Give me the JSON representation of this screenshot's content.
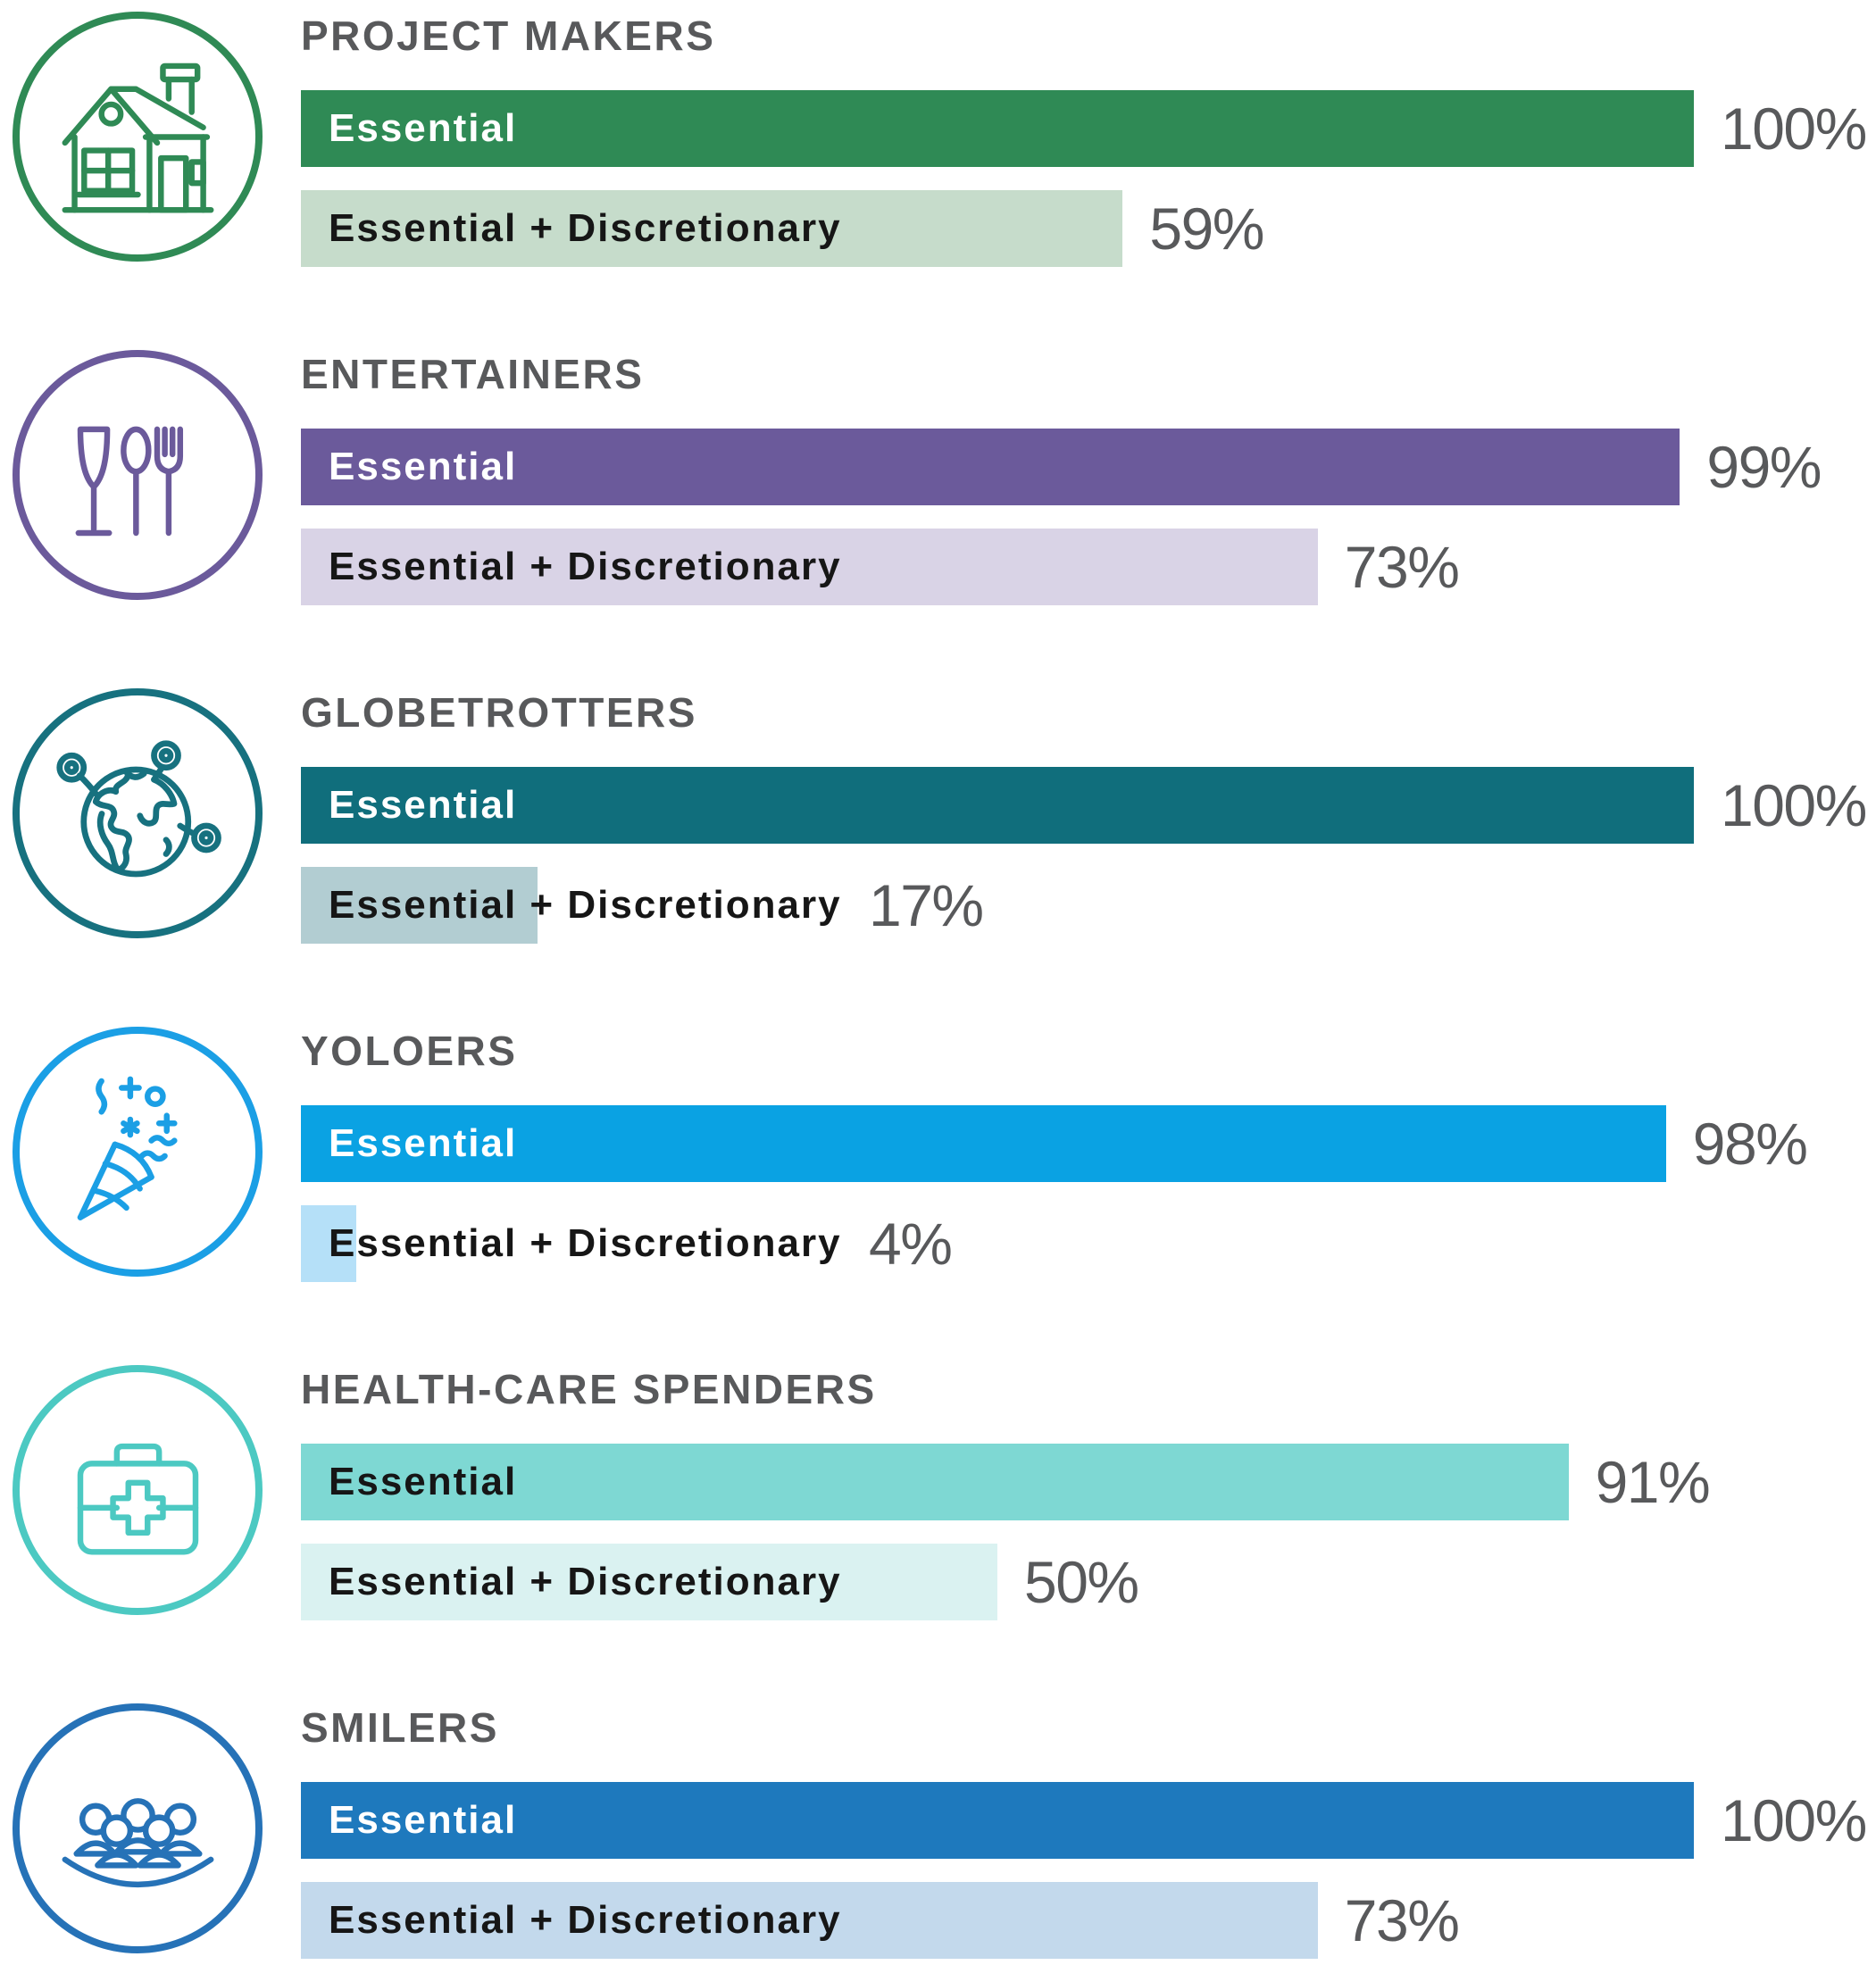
{
  "chart_data": {
    "type": "bar",
    "orientation": "horizontal",
    "title": "",
    "unit": "%",
    "max_value": 100,
    "grid": false,
    "title_color": "#58595B",
    "pct_color": "#58595B",
    "label_color_dark": "#161616",
    "series": {
      "essential_label": "Essential",
      "discretionary_label": "Essential + Discretionary"
    },
    "groups": [
      {
        "name": "PROJECT MAKERS",
        "icon": "house-icon",
        "essential": {
          "value": 100,
          "label": "100%"
        },
        "discretionary": {
          "value": 59,
          "label": "59%"
        },
        "colors": {
          "bar": "#2F8A55",
          "bar_light": "#C6DCCB",
          "circle": "#2F8A55",
          "essential_text": "#FFFFFF"
        }
      },
      {
        "name": "ENTERTAINERS",
        "icon": "dining-icon",
        "essential": {
          "value": 99,
          "label": "99%"
        },
        "discretionary": {
          "value": 73,
          "label": "73%"
        },
        "colors": {
          "bar": "#6B5A9B",
          "bar_light": "#D9D3E6",
          "circle": "#6B5A9B",
          "essential_text": "#FFFFFF"
        }
      },
      {
        "name": "GLOBETROTTERS",
        "icon": "globe-icon",
        "essential": {
          "value": 100,
          "label": "100%"
        },
        "discretionary": {
          "value": 17,
          "label": "17%"
        },
        "colors": {
          "bar": "#106E7C",
          "bar_light": "#B2CDD2",
          "circle": "#17717F",
          "essential_text": "#FFFFFF"
        }
      },
      {
        "name": "YOLOERS",
        "icon": "party-popper-icon",
        "essential": {
          "value": 98,
          "label": "98%"
        },
        "discretionary": {
          "value": 4,
          "label": "4%"
        },
        "colors": {
          "bar": "#0AA2E3",
          "bar_light": "#B5E0F8",
          "circle": "#1B9FE5",
          "essential_text": "#FFFFFF"
        }
      },
      {
        "name": "HEALTH-CARE SPENDERS",
        "icon": "first-aid-icon",
        "essential": {
          "value": 91,
          "label": "91%"
        },
        "discretionary": {
          "value": 50,
          "label": "50%"
        },
        "colors": {
          "bar": "#7ED8D3",
          "bar_light": "#DAF2F1",
          "circle": "#4CC9C2",
          "essential_text": "#161616"
        }
      },
      {
        "name": "SMILERS",
        "icon": "crowd-icon",
        "essential": {
          "value": 100,
          "label": "100%"
        },
        "discretionary": {
          "value": 73,
          "label": "73%"
        },
        "colors": {
          "bar": "#1E79BD",
          "bar_light": "#C3D9EC",
          "circle": "#2672B7",
          "essential_text": "#FFFFFF"
        }
      }
    ]
  }
}
